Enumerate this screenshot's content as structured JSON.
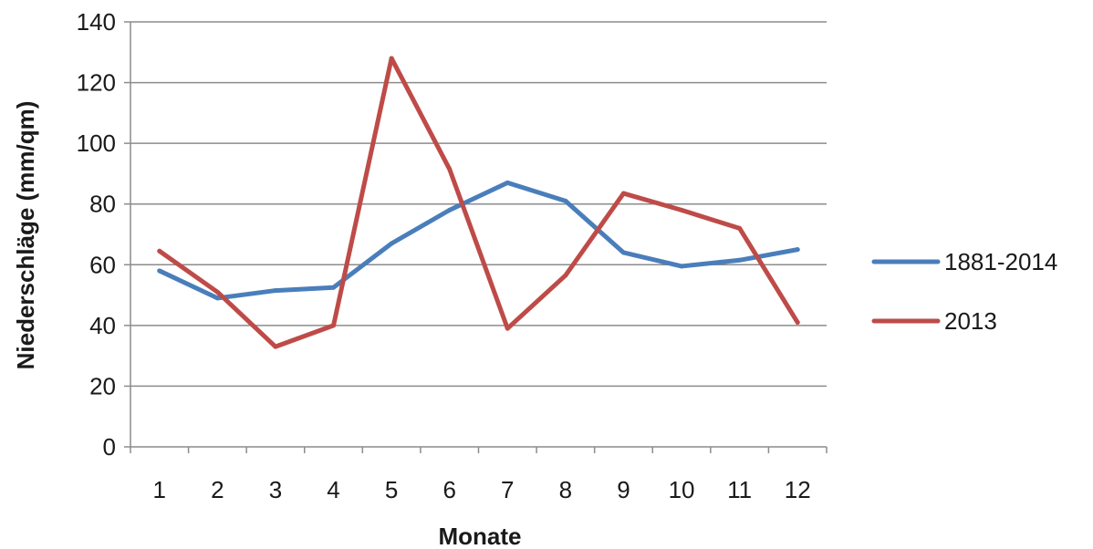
{
  "chart_data": {
    "type": "line",
    "title": "",
    "xlabel": "Monate",
    "ylabel": "Niederschläge (mm/qm)",
    "categories": [
      "1",
      "2",
      "3",
      "4",
      "5",
      "6",
      "7",
      "8",
      "9",
      "10",
      "11",
      "12"
    ],
    "ylim": [
      0,
      140
    ],
    "yticks": [
      0,
      20,
      40,
      60,
      80,
      100,
      120,
      140
    ],
    "grid": "horizontal",
    "legend_position": "right",
    "series": [
      {
        "name": "1881-2014",
        "color": "#4a7ebb",
        "values": [
          58,
          49,
          51.5,
          52.5,
          67,
          78,
          87,
          81,
          64,
          59.5,
          61.5,
          65
        ]
      },
      {
        "name": "2013",
        "color": "#be4b48",
        "values": [
          64.5,
          51,
          33,
          40,
          128,
          91.5,
          39,
          56.5,
          83.5,
          78,
          72,
          41
        ]
      }
    ]
  }
}
